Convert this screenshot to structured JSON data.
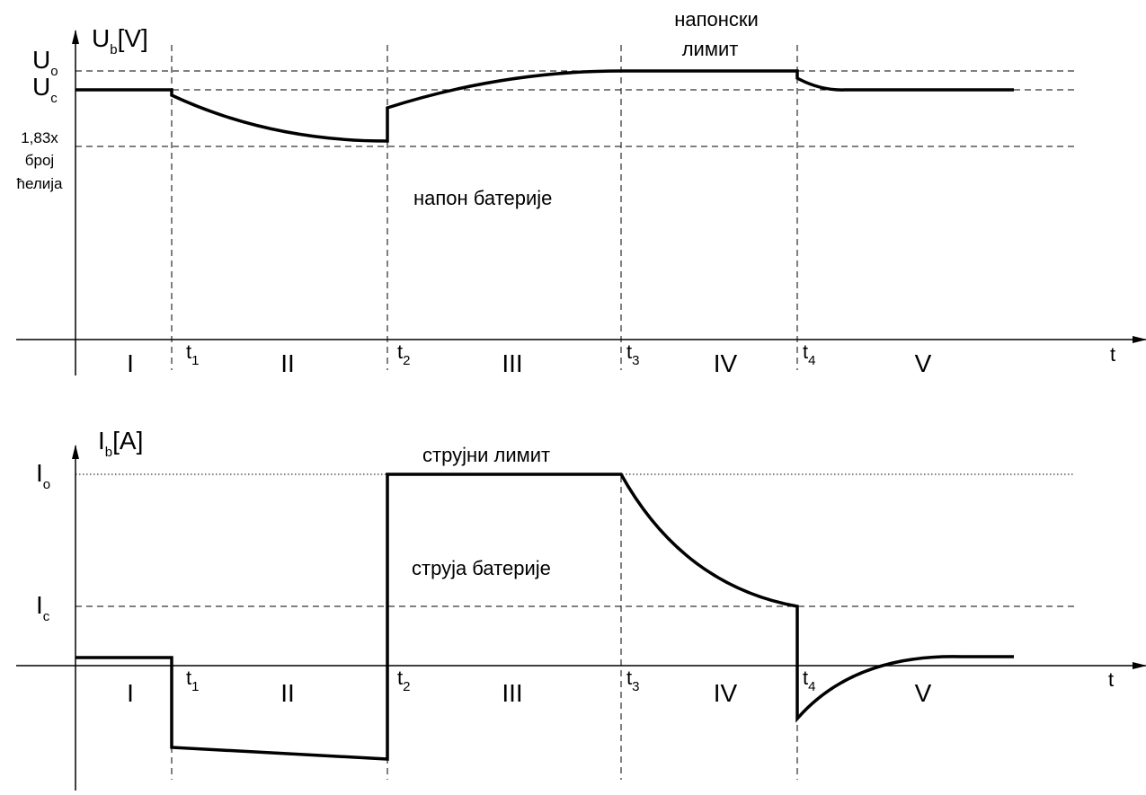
{
  "top_panel": {
    "y_axis_label": "U",
    "y_axis_label_sub": "b",
    "y_axis_label_unit": "[V]",
    "levels": [
      {
        "symbol": "U",
        "sub": "o"
      },
      {
        "symbol": "U",
        "sub": "c"
      }
    ],
    "low_level_lines": [
      "1,83x",
      "број",
      "ћелија"
    ],
    "curve_label": "напон батерије",
    "limit_label_lines": [
      "напонски",
      "лимит"
    ],
    "x_axis_label": "t",
    "times": [
      {
        "symbol": "t",
        "sub": "1"
      },
      {
        "symbol": "t",
        "sub": "2"
      },
      {
        "symbol": "t",
        "sub": "3"
      },
      {
        "symbol": "t",
        "sub": "4"
      }
    ],
    "phases": [
      "I",
      "II",
      "III",
      "IV",
      "V"
    ]
  },
  "bottom_panel": {
    "y_axis_label": "I",
    "y_axis_label_sub": "b",
    "y_axis_label_unit": "[A]",
    "levels": [
      {
        "symbol": "I",
        "sub": "o"
      },
      {
        "symbol": "I",
        "sub": "c"
      }
    ],
    "curve_label": "струја батерије",
    "limit_label": "струјни лимит",
    "x_axis_label": "t",
    "times": [
      {
        "symbol": "t",
        "sub": "1"
      },
      {
        "symbol": "t",
        "sub": "2"
      },
      {
        "symbol": "t",
        "sub": "3"
      },
      {
        "symbol": "t",
        "sub": "4"
      }
    ],
    "phases": [
      "I",
      "II",
      "III",
      "IV",
      "V"
    ]
  }
}
